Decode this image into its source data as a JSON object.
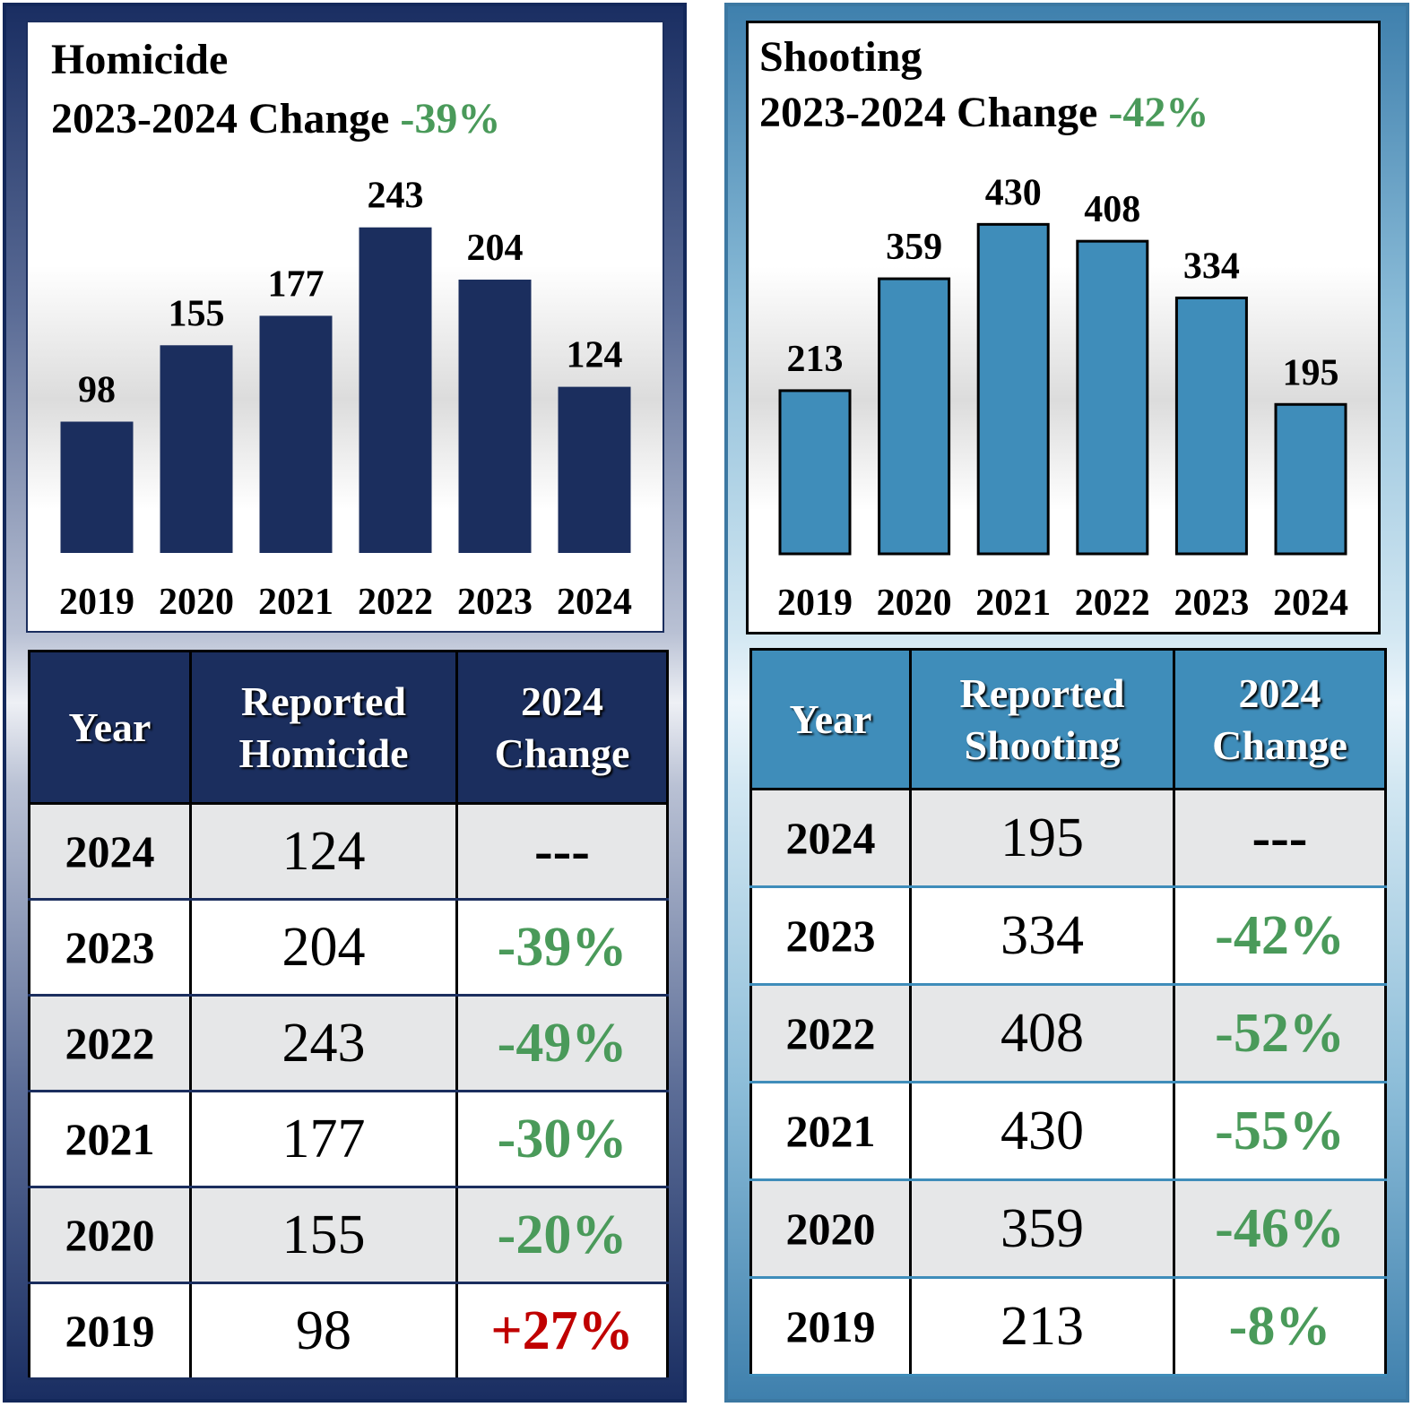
{
  "panels": {
    "homicide": {
      "title": "Homicide",
      "change_label": "2023-2024 Change",
      "change_value": "-39%",
      "table": {
        "headers": {
          "year": "Year",
          "reported_line1": "Reported",
          "reported_line2": "Homicide",
          "change_line1": "2024",
          "change_line2": "Change"
        },
        "rows": [
          {
            "year": "2024",
            "reported": "124",
            "change": "---",
            "change_color": "#000000"
          },
          {
            "year": "2023",
            "reported": "204",
            "change": "-39%",
            "change_color": "#4a9a5a"
          },
          {
            "year": "2022",
            "reported": "243",
            "change": "-49%",
            "change_color": "#4a9a5a"
          },
          {
            "year": "2021",
            "reported": "177",
            "change": "-30%",
            "change_color": "#4a9a5a"
          },
          {
            "year": "2020",
            "reported": "155",
            "change": "-20%",
            "change_color": "#4a9a5a"
          },
          {
            "year": "2019",
            "reported": "98",
            "change": "+27%",
            "change_color": "#c00000"
          }
        ]
      }
    },
    "shooting": {
      "title": "Shooting",
      "change_label": "2023-2024 Change",
      "change_value": "-42%",
      "table": {
        "headers": {
          "year": "Year",
          "reported_line1": "Reported",
          "reported_line2": "Shooting",
          "change_line1": "2024",
          "change_line2": "Change"
        },
        "rows": [
          {
            "year": "2024",
            "reported": "195",
            "change": "---",
            "change_color": "#000000"
          },
          {
            "year": "2023",
            "reported": "334",
            "change": "-42%",
            "change_color": "#4a9a5a"
          },
          {
            "year": "2022",
            "reported": "408",
            "change": "-52%",
            "change_color": "#4a9a5a"
          },
          {
            "year": "2021",
            "reported": "430",
            "change": "-55%",
            "change_color": "#4a9a5a"
          },
          {
            "year": "2020",
            "reported": "359",
            "change": "-46%",
            "change_color": "#4a9a5a"
          },
          {
            "year": "2019",
            "reported": "213",
            "change": "-8%",
            "change_color": "#4a9a5a"
          }
        ]
      }
    }
  },
  "chart_data": [
    {
      "type": "bar",
      "title": "Homicide",
      "categories": [
        "2019",
        "2020",
        "2021",
        "2022",
        "2023",
        "2024"
      ],
      "values": [
        98,
        155,
        177,
        243,
        204,
        124
      ],
      "data_labels": true,
      "bar_color": "#1b2e5e",
      "grid": false,
      "legend": "none"
    },
    {
      "type": "bar",
      "title": "Shooting",
      "categories": [
        "2019",
        "2020",
        "2021",
        "2022",
        "2023",
        "2024"
      ],
      "values": [
        213,
        359,
        430,
        408,
        334,
        195
      ],
      "data_labels": true,
      "bar_color": "#3f8dba",
      "bar_outline": "#000000",
      "grid": false,
      "legend": "none"
    }
  ],
  "colors": {
    "homicide_dark": "#1b2e5e",
    "shooting_blue": "#3f8dba",
    "decrease_green": "#4a9a5a",
    "increase_red": "#c00000",
    "row_shade": "#e6e7e8"
  }
}
